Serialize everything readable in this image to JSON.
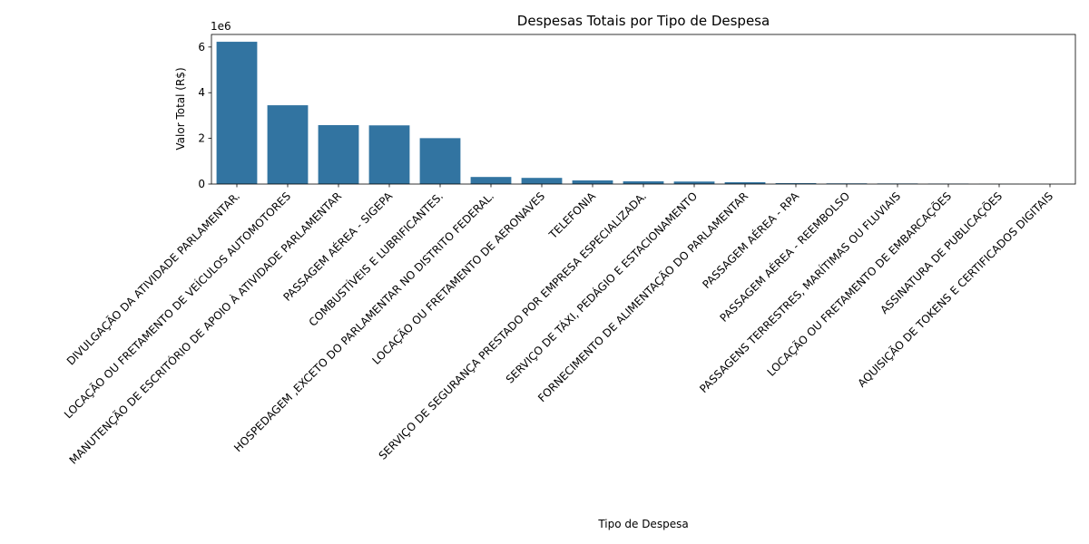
{
  "chart_data": {
    "type": "bar",
    "title": "Despesas Totais por Tipo de Despesa",
    "xlabel": "Tipo de Despesa",
    "ylabel": "Valor Total (R$)",
    "y_offset_text": "1e6",
    "ylim": [
      0,
      6550000
    ],
    "yticks": [
      0,
      2000000,
      4000000,
      6000000
    ],
    "ytick_labels": [
      "0",
      "2",
      "4",
      "6"
    ],
    "grid": false,
    "bar_color": "#3274a1",
    "categories": [
      "DIVULGAÇÃO DA ATIVIDADE PARLAMENTAR.",
      "LOCAÇÃO OU FRETAMENTO DE VEÍCULOS AUTOMOTORES",
      "MANUTENÇÃO DE ESCRITÓRIO DE APOIO À ATIVIDADE PARLAMENTAR",
      "PASSAGEM AÉREA - SIGEPA",
      "COMBUSTÍVEIS E LUBRIFICANTES.",
      "HOSPEDAGEM ,EXCETO DO PARLAMENTAR NO DISTRITO FEDERAL.",
      "LOCAÇÃO OU FRETAMENTO DE AERONAVES",
      "TELEFONIA",
      "SERVIÇO DE SEGURANÇA PRESTADO POR EMPRESA ESPECIALIZADA.",
      "SERVIÇO DE TÁXI, PEDÁGIO E ESTACIONAMENTO",
      "FORNECIMENTO DE ALIMENTAÇÃO DO PARLAMENTAR",
      "PASSAGEM AÉREA - RPA",
      "PASSAGEM AÉREA - REEMBOLSO",
      "PASSAGENS TERRESTRES, MARÍTIMAS OU FLUVIAIS",
      "LOCAÇÃO OU FRETAMENTO DE EMBARCAÇÕES",
      "ASSINATURA DE PUBLICAÇÕES",
      "AQUISIÇÃO DE TOKENS E CERTIFICADOS DIGITAIS"
    ],
    "values": [
      6230000,
      3450000,
      2580000,
      2570000,
      2010000,
      310000,
      270000,
      160000,
      120000,
      110000,
      80000,
      40000,
      30000,
      25000,
      20000,
      5000,
      2000
    ]
  }
}
